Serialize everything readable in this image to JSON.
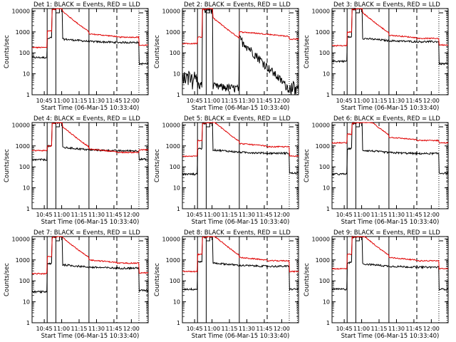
{
  "chart_data": [
    {
      "type": "line",
      "title": "Det 1: BLACK = Events, RED = LLD",
      "xlabel": "Start Time (06-Mar-15 10:33:40)",
      "ylabel": "Counts/sec",
      "yscale": "log",
      "ylim": [
        1,
        13000
      ],
      "x_ticks": [
        "10:45",
        "11:00",
        "11:15",
        "11:30",
        "11:45",
        "12:00"
      ],
      "y_ticks": [
        "1",
        "10",
        "100",
        "1000",
        "10000"
      ],
      "series": [
        {
          "name": "Events",
          "color": "#000000"
        },
        {
          "name": "LLD",
          "color": "#e00000"
        }
      ],
      "shape": {
        "red_base": 180,
        "black_base": 60,
        "red_mid": 800,
        "black_mid": 350,
        "red_after": 230,
        "black_after": 30
      }
    },
    {
      "type": "line",
      "title": "Det 2: BLACK = Events, RED = LLD",
      "xlabel": "Start Time (06-Mar-15 10:33:40)",
      "ylabel": "Counts/sec",
      "yscale": "log",
      "ylim": [
        1,
        13000
      ],
      "x_ticks": [
        "10:45",
        "11:00",
        "11:15",
        "11:30",
        "11:45",
        "12:00"
      ],
      "y_ticks": [
        "1",
        "10",
        "100",
        "1000",
        "10000"
      ],
      "series": [
        {
          "name": "Events",
          "color": "#000000"
        },
        {
          "name": "LLD",
          "color": "#e00000"
        }
      ],
      "shape": {
        "red_base": 280,
        "black_base": 6,
        "red_mid": 400,
        "black_mid": 2,
        "red_after": 450,
        "black_after": 1.5,
        "det2": true
      }
    },
    {
      "type": "line",
      "title": "Det 3: BLACK = Events, RED = LLD",
      "xlabel": "Start Time (06-Mar-15 10:33:40)",
      "ylabel": "Counts/sec",
      "yscale": "log",
      "ylim": [
        1,
        13000
      ],
      "x_ticks": [
        "10:45",
        "11:00",
        "11:15",
        "11:30",
        "11:45",
        "12:00"
      ],
      "y_ticks": [
        "1",
        "10",
        "100",
        "1000",
        "10000"
      ],
      "series": [
        {
          "name": "Events",
          "color": "#000000"
        },
        {
          "name": "LLD",
          "color": "#e00000"
        }
      ],
      "shape": {
        "red_base": 220,
        "black_base": 40,
        "red_mid": 700,
        "black_mid": 380,
        "red_after": 240,
        "black_after": 30
      }
    },
    {
      "type": "line",
      "title": "Det 4: BLACK = Events, RED = LLD",
      "xlabel": "Start Time (06-Mar-15 10:33:40)",
      "ylabel": "Counts/sec",
      "yscale": "log",
      "ylim": [
        1,
        13000
      ],
      "x_ticks": [
        "10:45",
        "11:00",
        "11:15",
        "11:30",
        "11:45",
        "12:00"
      ],
      "y_ticks": [
        "1",
        "10",
        "100",
        "1000",
        "10000"
      ],
      "series": [
        {
          "name": "Events",
          "color": "#000000"
        },
        {
          "name": "LLD",
          "color": "#e00000"
        }
      ],
      "shape": {
        "red_base": 600,
        "black_base": 220,
        "red_mid": 700,
        "black_mid": 650,
        "red_after": 650,
        "black_after": 230
      }
    },
    {
      "type": "line",
      "title": "Det 5: BLACK = Events, RED = LLD",
      "xlabel": "Start Time (06-Mar-15 10:33:40)",
      "ylabel": "Counts/sec",
      "yscale": "log",
      "ylim": [
        1,
        13000
      ],
      "x_ticks": [
        "10:45",
        "11:00",
        "11:15",
        "11:30",
        "11:45",
        "12:00"
      ],
      "y_ticks": [
        "1",
        "10",
        "100",
        "1000",
        "10000"
      ],
      "series": [
        {
          "name": "Events",
          "color": "#000000"
        },
        {
          "name": "LLD",
          "color": "#e00000"
        }
      ],
      "shape": {
        "red_base": 320,
        "black_base": 45,
        "red_mid": 1300,
        "black_mid": 500,
        "red_after": 330,
        "black_after": 50
      }
    },
    {
      "type": "line",
      "title": "Det 6: BLACK = Events, RED = LLD",
      "xlabel": "Start Time (06-Mar-15 10:33:40)",
      "ylabel": "Counts/sec",
      "yscale": "log",
      "ylim": [
        1,
        13000
      ],
      "x_ticks": [
        "10:45",
        "11:00",
        "11:15",
        "11:30",
        "11:45",
        "12:00"
      ],
      "y_ticks": [
        "1",
        "10",
        "100",
        "1000",
        "10000"
      ],
      "series": [
        {
          "name": "Events",
          "color": "#000000"
        },
        {
          "name": "LLD",
          "color": "#e00000"
        }
      ],
      "shape": {
        "red_base": 1400,
        "black_base": 45,
        "red_mid": 2600,
        "black_mid": 480,
        "red_after": 1400,
        "black_after": 50
      }
    },
    {
      "type": "line",
      "title": "Det 7: BLACK = Events, RED = LLD",
      "xlabel": "Start Time (06-Mar-15 10:33:40)",
      "ylabel": "Counts/sec",
      "yscale": "log",
      "ylim": [
        1,
        13000
      ],
      "x_ticks": [
        "10:45",
        "11:00",
        "11:15",
        "11:30",
        "11:45",
        "12:00"
      ],
      "y_ticks": [
        "1",
        "10",
        "100",
        "1000",
        "10000"
      ],
      "series": [
        {
          "name": "Events",
          "color": "#000000"
        },
        {
          "name": "LLD",
          "color": "#e00000"
        }
      ],
      "shape": {
        "red_base": 220,
        "black_base": 30,
        "red_mid": 1000,
        "black_mid": 450,
        "red_after": 240,
        "black_after": 35
      }
    },
    {
      "type": "line",
      "title": "Det 8: BLACK = Events, RED = LLD",
      "xlabel": "Start Time (06-Mar-15 10:33:40)",
      "ylabel": "Counts/sec",
      "yscale": "log",
      "ylim": [
        1,
        13000
      ],
      "x_ticks": [
        "10:45",
        "11:00",
        "11:15",
        "11:30",
        "11:45",
        "12:00"
      ],
      "y_ticks": [
        "1",
        "10",
        "100",
        "1000",
        "10000"
      ],
      "series": [
        {
          "name": "Events",
          "color": "#000000"
        },
        {
          "name": "LLD",
          "color": "#e00000"
        }
      ],
      "shape": {
        "red_base": 280,
        "black_base": 40,
        "red_mid": 1300,
        "black_mid": 550,
        "red_after": 280,
        "black_after": 40
      }
    },
    {
      "type": "line",
      "title": "Det 9: BLACK = Events, RED = LLD",
      "xlabel": "Start Time (06-Mar-15 10:33:40)",
      "ylabel": "Counts/sec",
      "yscale": "log",
      "ylim": [
        1,
        13000
      ],
      "x_ticks": [
        "10:45",
        "11:00",
        "11:15",
        "11:30",
        "11:45",
        "12:00"
      ],
      "y_ticks": [
        "1",
        "10",
        "100",
        "1000",
        "10000"
      ],
      "series": [
        {
          "name": "Events",
          "color": "#000000"
        },
        {
          "name": "LLD",
          "color": "#e00000"
        }
      ],
      "shape": {
        "red_base": 380,
        "black_base": 40,
        "red_mid": 1300,
        "black_mid": 500,
        "red_after": 380,
        "black_after": 40
      }
    }
  ]
}
